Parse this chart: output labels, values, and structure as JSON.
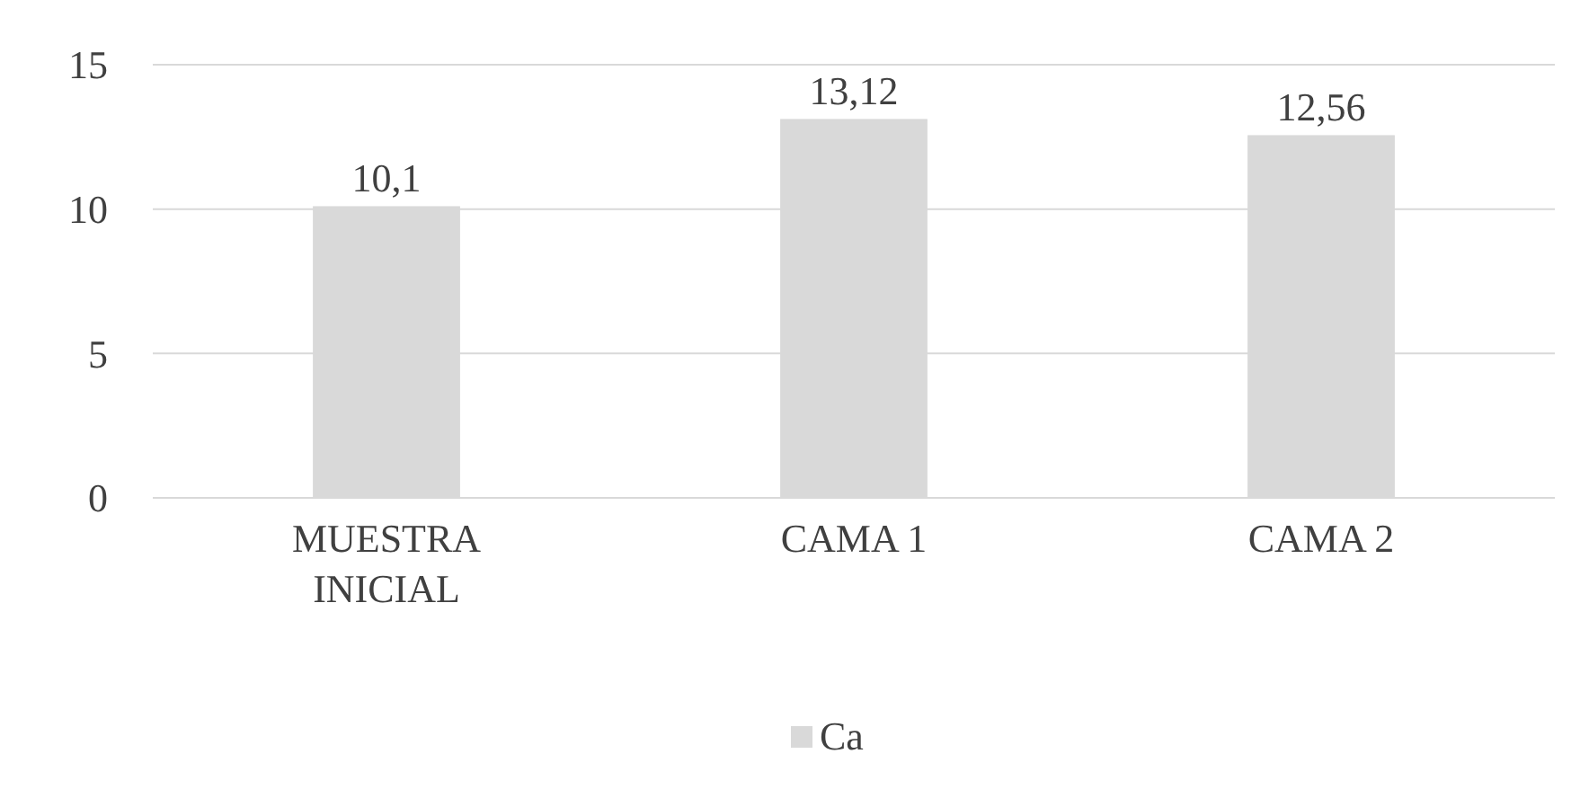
{
  "chart_data": {
    "type": "bar",
    "categories": [
      "MUESTRA INICIAL",
      "CAMA 1",
      "CAMA 2"
    ],
    "series": [
      {
        "name": "Ca",
        "color": "#d9d9d9",
        "values": [
          10.1,
          13.12,
          12.56
        ],
        "value_labels": [
          "10,1",
          "13,12",
          "12,56"
        ]
      }
    ],
    "ylim": [
      0,
      15
    ],
    "yticks": [
      0,
      5,
      10,
      15
    ],
    "grid": "y",
    "legend": "bottom"
  }
}
